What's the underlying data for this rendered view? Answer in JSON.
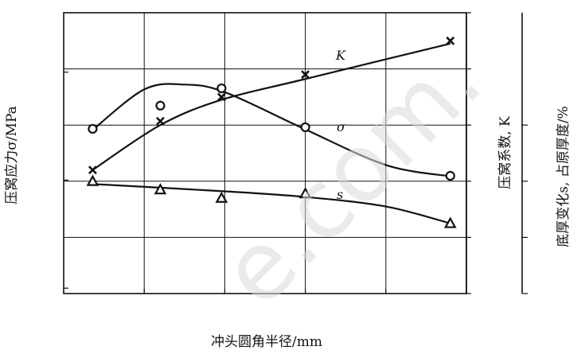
{
  "chart_data": {
    "type": "line",
    "xlabel": "冲头圆角半径/mm",
    "xlim": [
      0,
      25
    ],
    "xticks": [
      "0",
      "5",
      "10",
      "15",
      "20",
      "25"
    ],
    "axes": {
      "stress": {
        "label": "压窝应力σ/MPa",
        "lim": [
          290,
          810
        ],
        "ticks": [
          "300",
          "500",
          "700"
        ]
      },
      "coefficient": {
        "label": "压窝系数, K",
        "lim": [
          0,
          0.5
        ],
        "ticks": [
          "0",
          "0.1",
          "0.2",
          "0.3",
          "0.4",
          "0.5"
        ]
      },
      "thickness": {
        "label": "底厚变化s, 占原厚度/%",
        "lim": [
          70,
          120
        ],
        "ticks": [
          "70",
          "80",
          "90",
          "100"
        ]
      }
    },
    "grid": true,
    "series": [
      {
        "name": "K",
        "axis": "coefficient",
        "marker": "x",
        "x": [
          1.8,
          6,
          9.8,
          15,
          24
        ],
        "y": [
          0.22,
          0.307,
          0.35,
          0.39,
          0.45
        ],
        "curve_x": [
          1.8,
          6,
          9.8,
          15,
          24
        ],
        "curve_y": [
          0.22,
          0.3,
          0.345,
          0.382,
          0.445
        ]
      },
      {
        "name": "σ",
        "axis": "stress",
        "marker": "circle",
        "x": [
          1.8,
          6,
          9.8,
          15,
          24
        ],
        "y": [
          595,
          638,
          670,
          598,
          508
        ],
        "curve_x": [
          1.8,
          5,
          7.5,
          10,
          15,
          20,
          24
        ],
        "curve_y": [
          593,
          668,
          677,
          663,
          594,
          528,
          507
        ]
      },
      {
        "name": "s",
        "axis": "thickness",
        "marker": "triangle",
        "x": [
          1.8,
          6,
          9.8,
          15,
          24
        ],
        "y": [
          90,
          88.5,
          87,
          87.8,
          82.5
        ],
        "curve_x": [
          1.8,
          10,
          15,
          20,
          24
        ],
        "curve_y": [
          89.5,
          88.2,
          87.2,
          85.5,
          82.5
        ]
      }
    ]
  },
  "watermark": "e.com."
}
